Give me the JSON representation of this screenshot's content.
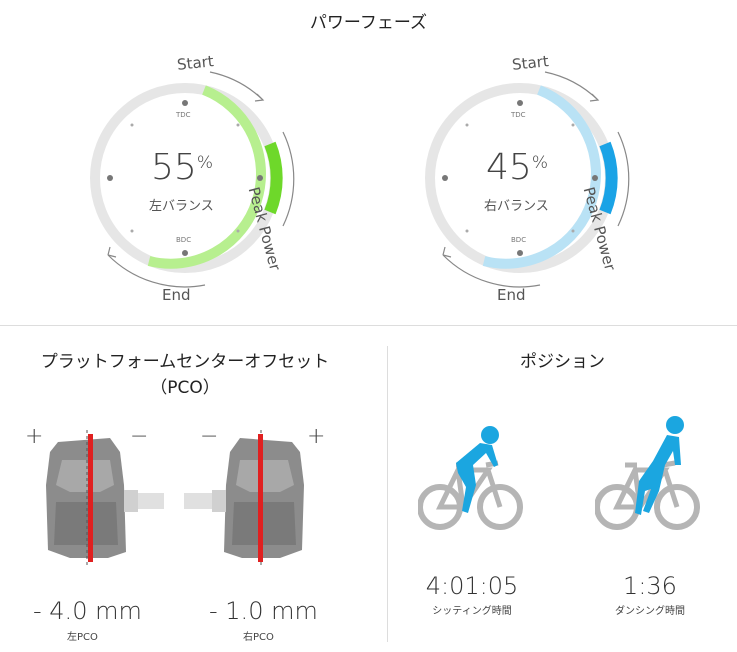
{
  "power_phase": {
    "title": "パワーフェーズ",
    "left": {
      "value": "55",
      "unit": "%",
      "label": "左バランス",
      "tdc": "TDC",
      "bdc": "BDC",
      "start": "Start",
      "peak": "Peak Power",
      "end": "End",
      "colors": {
        "arc": "#b7ef8f",
        "peak": "#6ed82a",
        "track": "#e6e6e6"
      }
    },
    "right": {
      "value": "45",
      "unit": "%",
      "label": "右バランス",
      "tdc": "TDC",
      "bdc": "BDC",
      "start": "Start",
      "peak": "Peak Power",
      "end": "End",
      "colors": {
        "arc": "#b9e2f5",
        "peak": "#1aa3e6",
        "track": "#e6e6e6"
      }
    }
  },
  "pco": {
    "title_line1": "プラットフォームセンターオフセット",
    "title_line2": "（PCO）",
    "left": {
      "plus": "+",
      "minus": "−",
      "value": "- 4.0 mm",
      "label": "左PCO"
    },
    "right": {
      "plus": "+",
      "minus": "−",
      "value": "- 1.0 mm",
      "label": "右PCO"
    },
    "colors": {
      "pedal": "#8c8c8c",
      "marker": "#e02020"
    }
  },
  "position": {
    "title": "ポジション",
    "seated": {
      "time": "4:01:05",
      "label": "シッティング時間"
    },
    "standing": {
      "time": "1:36",
      "label": "ダンシング時間"
    },
    "colors": {
      "rider": "#1ba6e0",
      "bike": "#b5b5b5"
    }
  }
}
